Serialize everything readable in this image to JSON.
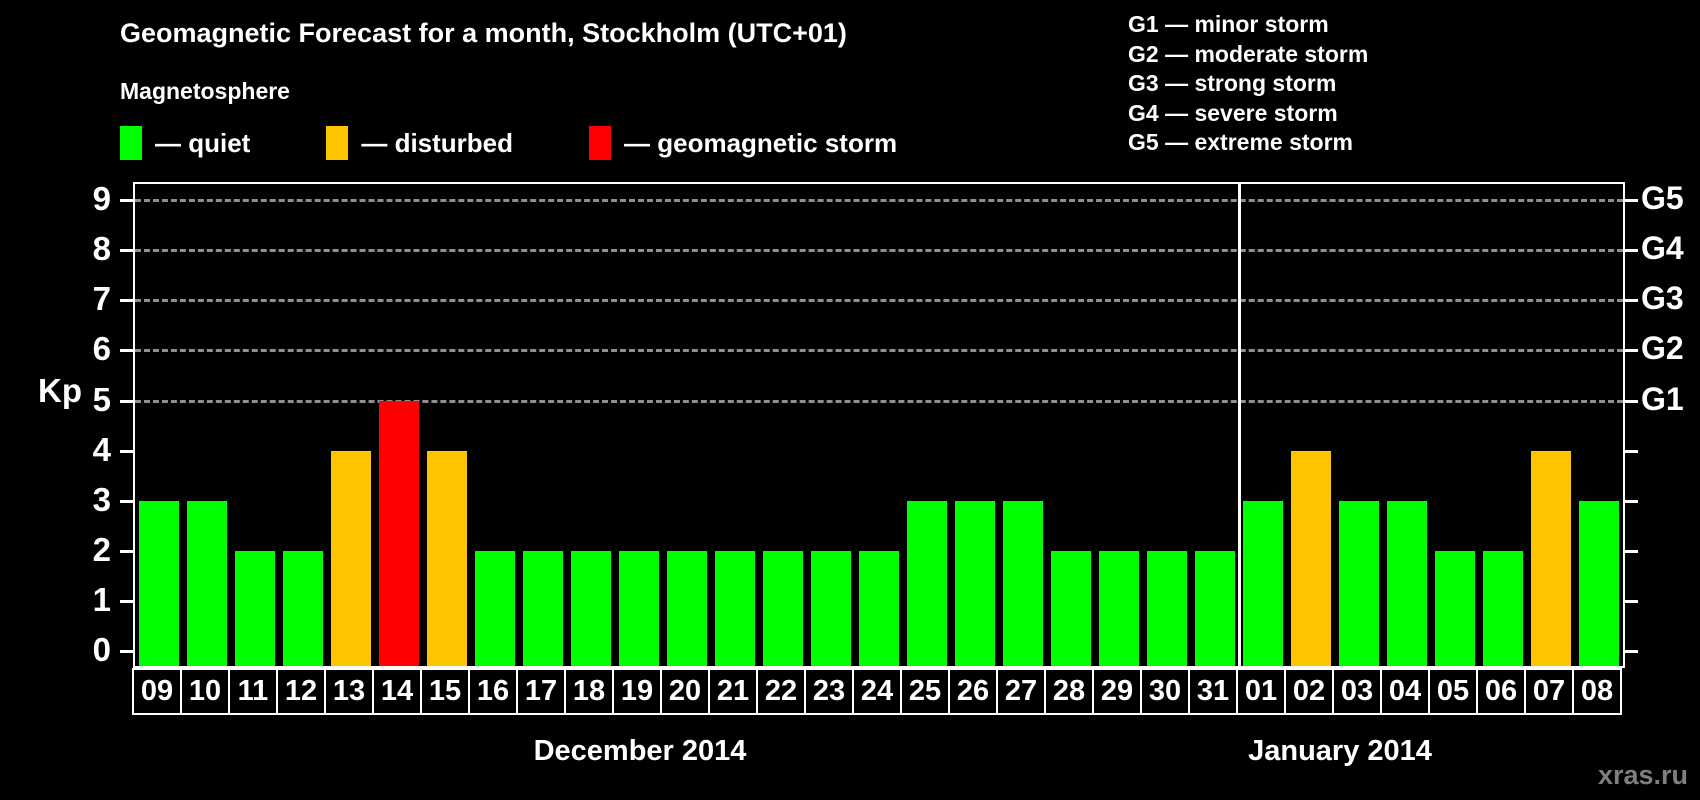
{
  "header": {
    "title": "Geomagnetic Forecast for a month, Stockholm (UTC+01)",
    "subtitle": "Magnetosphere"
  },
  "legend": {
    "items": [
      {
        "key": "quiet",
        "label": "— quiet"
      },
      {
        "key": "disturbed",
        "label": "— disturbed"
      },
      {
        "key": "storm",
        "label": "— geomagnetic storm"
      }
    ]
  },
  "g_scale_legend": {
    "items": [
      "G1 — minor storm",
      "G2 — moderate storm",
      "G3 — strong storm",
      "G4 — severe storm",
      "G5 — extreme storm"
    ]
  },
  "colors": {
    "quiet": "#00FF00",
    "disturbed": "#FFC400",
    "storm": "#FF0000",
    "grid": "#8F8F8F",
    "axis": "#FFFFFF",
    "watermark": "#7F7F7F"
  },
  "watermark": "xras.ru",
  "chart_data": {
    "type": "bar",
    "title": "Geomagnetic Forecast for a month, Stockholm (UTC+01)",
    "ylabel": "Kp",
    "xlabel": "",
    "ylim": [
      0,
      9
    ],
    "yticks": [
      0,
      1,
      2,
      3,
      4,
      5,
      6,
      7,
      8,
      9
    ],
    "gridlines_at": [
      5,
      6,
      7,
      8,
      9
    ],
    "grid": true,
    "legend_position": "top",
    "right_axis_labels": [
      {
        "value": 5,
        "label": "G1"
      },
      {
        "value": 6,
        "label": "G2"
      },
      {
        "value": 7,
        "label": "G3"
      },
      {
        "value": 8,
        "label": "G4"
      },
      {
        "value": 9,
        "label": "G5"
      }
    ],
    "categories": [
      "09",
      "10",
      "11",
      "12",
      "13",
      "14",
      "15",
      "16",
      "17",
      "18",
      "19",
      "20",
      "21",
      "22",
      "23",
      "24",
      "25",
      "26",
      "27",
      "28",
      "29",
      "30",
      "31",
      "01",
      "02",
      "03",
      "04",
      "05",
      "06",
      "07",
      "08"
    ],
    "values": [
      3,
      3,
      2,
      2,
      4,
      5,
      4,
      2,
      2,
      2,
      2,
      2,
      2,
      2,
      2,
      2,
      3,
      3,
      3,
      2,
      2,
      2,
      2,
      3,
      4,
      3,
      3,
      2,
      2,
      4,
      3
    ],
    "statuses": [
      "quiet",
      "quiet",
      "quiet",
      "quiet",
      "disturbed",
      "storm",
      "disturbed",
      "quiet",
      "quiet",
      "quiet",
      "quiet",
      "quiet",
      "quiet",
      "quiet",
      "quiet",
      "quiet",
      "quiet",
      "quiet",
      "quiet",
      "quiet",
      "quiet",
      "quiet",
      "quiet",
      "quiet",
      "disturbed",
      "quiet",
      "quiet",
      "quiet",
      "quiet",
      "disturbed",
      "quiet"
    ],
    "months": [
      {
        "label": "December 2014",
        "days": 23
      },
      {
        "label": "January 2014",
        "days": 8
      }
    ]
  }
}
